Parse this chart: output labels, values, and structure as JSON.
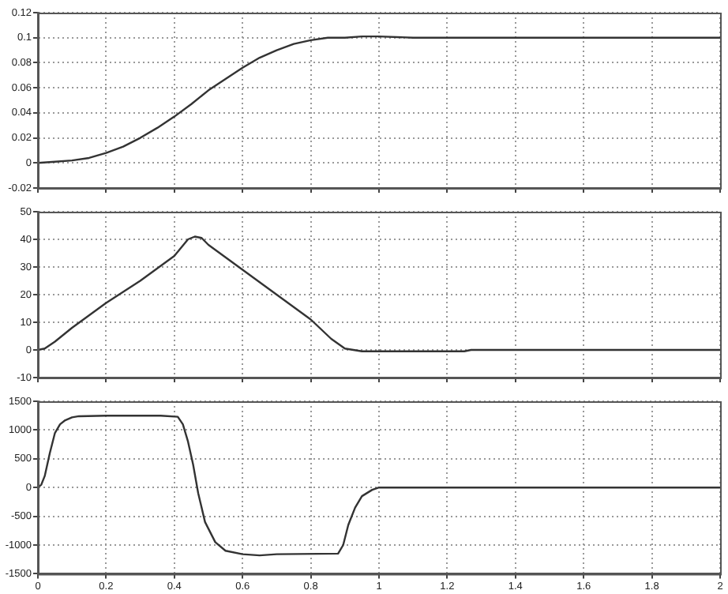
{
  "chart_data": [
    {
      "type": "line",
      "x": [
        0,
        0.05,
        0.1,
        0.15,
        0.2,
        0.25,
        0.3,
        0.35,
        0.4,
        0.45,
        0.5,
        0.55,
        0.6,
        0.65,
        0.7,
        0.75,
        0.8,
        0.85,
        0.9,
        0.95,
        1.0,
        1.1,
        1.9,
        1.93,
        2
      ],
      "series": [
        {
          "color": "#333333",
          "values": [
            0,
            0.001,
            0.002,
            0.004,
            0.008,
            0.013,
            0.02,
            0.028,
            0.037,
            0.047,
            0.058,
            0.067,
            0.076,
            0.084,
            0.09,
            0.095,
            0.098,
            0.1,
            0.1,
            0.101,
            0.101,
            0.1,
            0.1,
            0.1,
            0.1
          ]
        }
      ],
      "xlim": [
        0,
        2
      ],
      "xticks": [
        0,
        0.2,
        0.4,
        0.6,
        0.8,
        1,
        1.2,
        1.4,
        1.6,
        1.8,
        2
      ],
      "ylim": [
        -0.02,
        0.12
      ],
      "yticks": [
        -0.02,
        0,
        0.02,
        0.04,
        0.06,
        0.08,
        0.1,
        0.12
      ],
      "tick_labels": "y",
      "grid": true,
      "marker": "none",
      "line_style": "solid"
    },
    {
      "type": "line",
      "x": [
        0,
        0.02,
        0.05,
        0.1,
        0.2,
        0.3,
        0.4,
        0.44,
        0.46,
        0.48,
        0.5,
        0.6,
        0.7,
        0.8,
        0.86,
        0.9,
        0.95,
        1.25,
        1.27,
        2
      ],
      "series": [
        {
          "color": "#333333",
          "values": [
            0,
            0.5,
            3,
            8,
            17,
            25,
            34,
            40,
            41,
            40.5,
            38,
            29,
            20,
            11,
            4,
            0.5,
            -0.5,
            -0.5,
            0,
            0
          ]
        }
      ],
      "xlim": [
        0,
        2
      ],
      "xticks": [
        0,
        0.2,
        0.4,
        0.6,
        0.8,
        1,
        1.2,
        1.4,
        1.6,
        1.8,
        2
      ],
      "ylim": [
        -10,
        50
      ],
      "yticks": [
        -10,
        0,
        10,
        20,
        30,
        40,
        50
      ],
      "tick_labels": "y",
      "grid": true,
      "marker": "none",
      "line_style": "solid"
    },
    {
      "type": "line",
      "x": [
        0,
        0.01,
        0.02,
        0.035,
        0.05,
        0.065,
        0.08,
        0.1,
        0.12,
        0.2,
        0.36,
        0.41,
        0.425,
        0.44,
        0.455,
        0.47,
        0.49,
        0.52,
        0.55,
        0.6,
        0.65,
        0.7,
        0.88,
        0.895,
        0.91,
        0.93,
        0.95,
        0.98,
        1.0,
        2
      ],
      "series": [
        {
          "color": "#333333",
          "values": [
            0,
            50,
            200,
            600,
            950,
            1100,
            1170,
            1220,
            1240,
            1250,
            1250,
            1230,
            1100,
            800,
            400,
            -100,
            -600,
            -950,
            -1100,
            -1160,
            -1180,
            -1160,
            -1150,
            -1000,
            -650,
            -350,
            -150,
            -40,
            0,
            0
          ]
        }
      ],
      "xlim": [
        0,
        2
      ],
      "xticks": [
        0,
        0.2,
        0.4,
        0.6,
        0.8,
        1,
        1.2,
        1.4,
        1.6,
        1.8,
        2
      ],
      "ylim": [
        -1500,
        1500
      ],
      "yticks": [
        -1500,
        -1000,
        -500,
        0,
        500,
        1000,
        1500
      ],
      "grid": true,
      "marker": "none",
      "line_style": "solid"
    }
  ]
}
